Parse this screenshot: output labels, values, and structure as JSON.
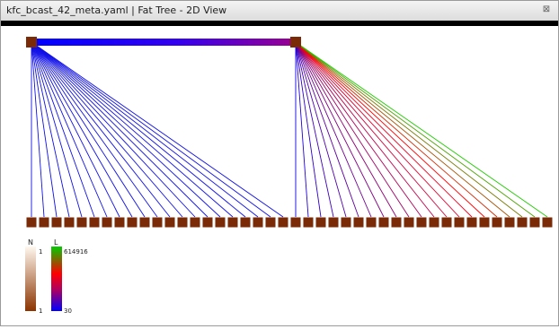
{
  "window": {
    "title": "kfc_bcast_42_meta.yaml  |  Fat Tree - 2D View",
    "close_glyph": "⊠"
  },
  "tree": {
    "spines": 2,
    "leaves": 42,
    "node_color": "#7a2a06"
  },
  "legend_n": {
    "label": "N",
    "max_label": "1",
    "min_label": "1",
    "top_color": "#fff7ee",
    "bottom_color": "#8b3300"
  },
  "legend_l": {
    "label": "L",
    "max_label": "614916",
    "min_label": "30",
    "colors": [
      "#00cc00",
      "#ff0000",
      "#0000ff"
    ]
  }
}
